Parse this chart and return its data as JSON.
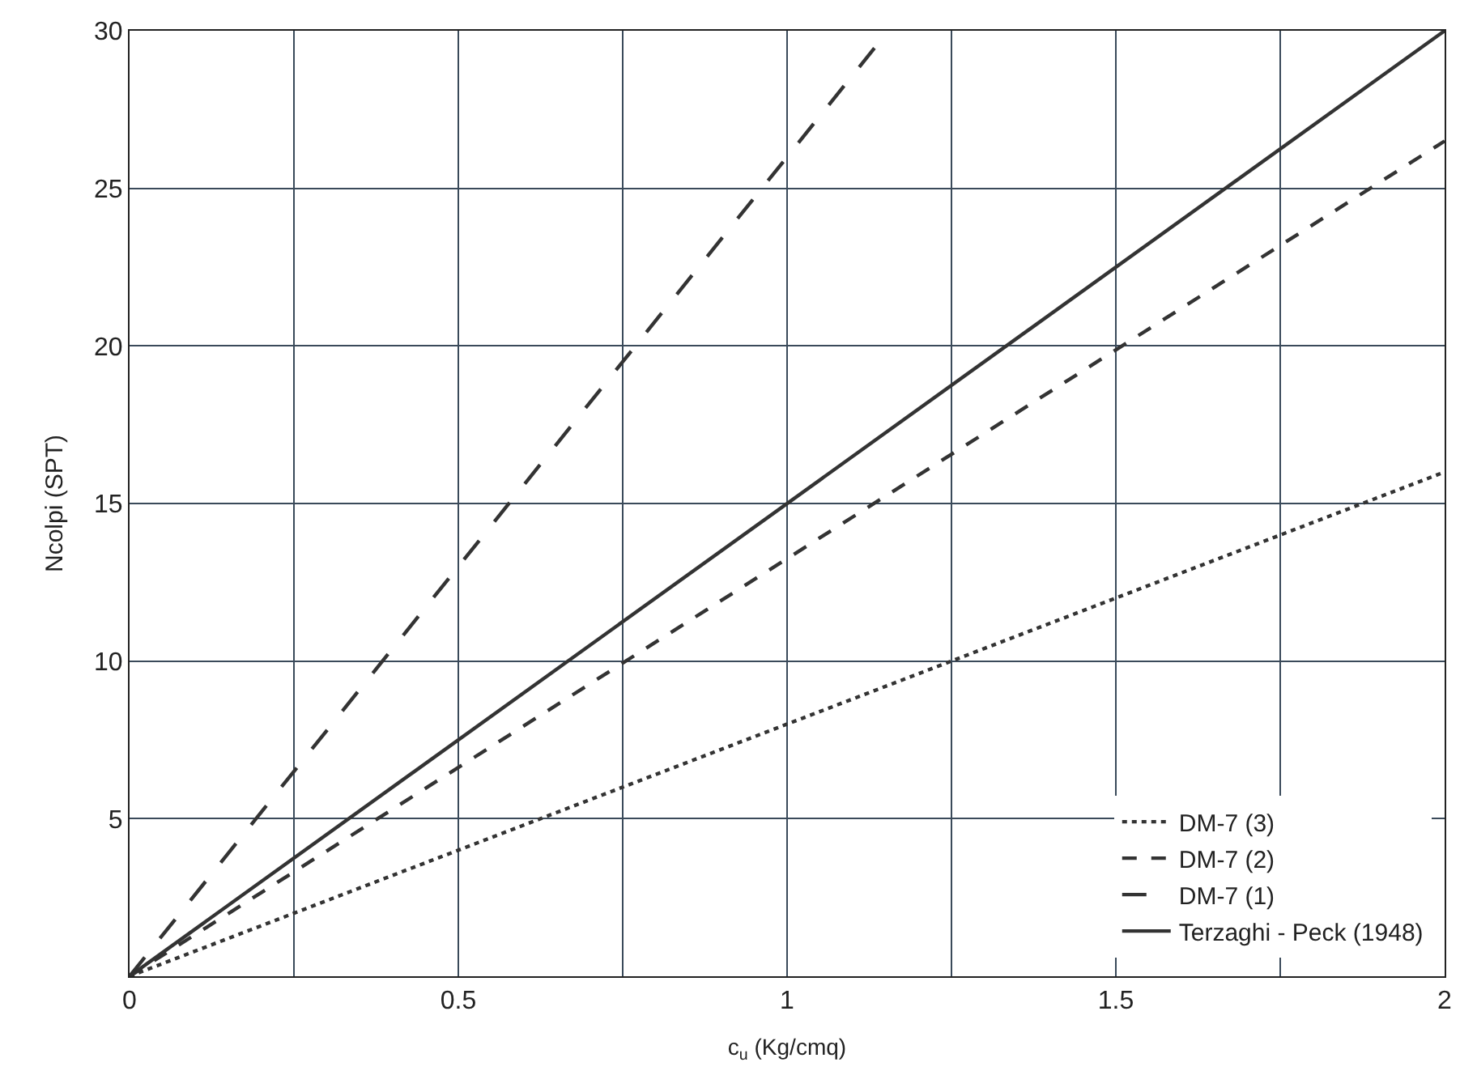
{
  "chart_data": {
    "type": "line",
    "xlabel": "c$_{u}$ (Kg/cmq)",
    "ylabel": "Ncolpi (SPT)",
    "xlim": [
      0,
      2
    ],
    "ylim": [
      0,
      30
    ],
    "xticks": [
      0,
      {
        "value": 0.25,
        "label": null
      },
      0.5,
      {
        "value": 0.75,
        "label": null
      },
      1,
      {
        "value": 1.25,
        "label": null
      },
      1.5,
      {
        "value": 1.75,
        "label": null
      },
      2
    ],
    "yticks": [
      {
        "value": 0,
        "label": null
      },
      5,
      10,
      15,
      20,
      25,
      30
    ],
    "grid": true,
    "legend": "bottom right",
    "marker": "none",
    "series": [
      {
        "name": "DM-7 (3)",
        "color": "#333333",
        "line_style": "dotted",
        "x": [
          0,
          2
        ],
        "values": [
          0,
          16
        ]
      },
      {
        "name": "DM-7 (2)",
        "color": "#333333",
        "line_style": "dashed",
        "x": [
          0,
          2
        ],
        "values": [
          0,
          26.5
        ]
      },
      {
        "name": "DM-7 (1)",
        "color": "#333333",
        "line_style": "longdash",
        "x": [
          0,
          1.154
        ],
        "values": [
          0,
          30
        ]
      },
      {
        "name": "Terzaghi - Peck (1948)",
        "color": "#333333",
        "line_style": "solid",
        "x": [
          0,
          2
        ],
        "values": [
          0,
          30
        ]
      }
    ]
  }
}
